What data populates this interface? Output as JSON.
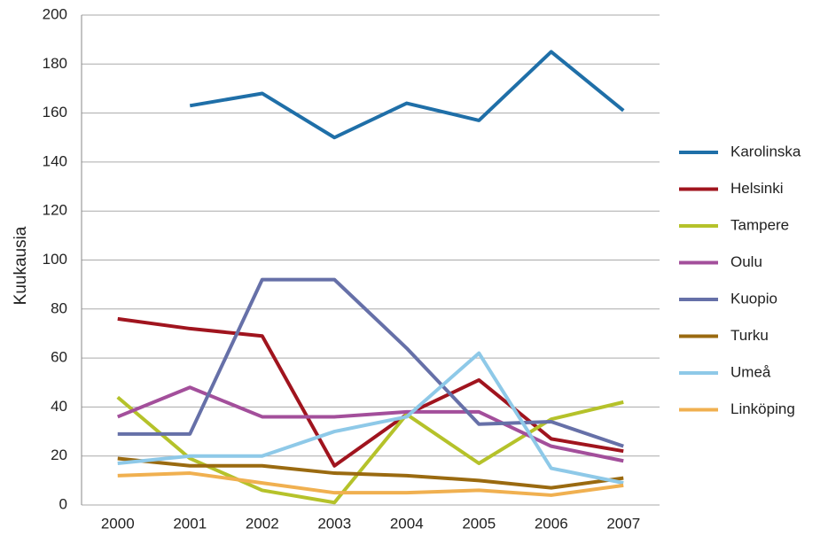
{
  "chart_data": {
    "type": "line",
    "y_label": "Kuukausia",
    "categories": [
      "2000",
      "2001",
      "2002",
      "2003",
      "2004",
      "2005",
      "2006",
      "2007"
    ],
    "series": [
      {
        "name": "Karolinska",
        "color": "#1f6fa8",
        "values": [
          null,
          163,
          168,
          150,
          164,
          157,
          185,
          161
        ]
      },
      {
        "name": "Helsinki",
        "color": "#a0141e",
        "values": [
          76,
          72,
          69,
          16,
          37,
          51,
          27,
          22
        ]
      },
      {
        "name": "Tampere",
        "color": "#b5c22a",
        "values": [
          44,
          19,
          6,
          1,
          37,
          17,
          35,
          42
        ]
      },
      {
        "name": "Oulu",
        "color": "#a34f9b",
        "values": [
          36,
          48,
          36,
          36,
          38,
          38,
          24,
          18
        ]
      },
      {
        "name": "Kuopio",
        "color": "#6670a8",
        "values": [
          29,
          29,
          92,
          92,
          64,
          33,
          34,
          24
        ]
      },
      {
        "name": "Turku",
        "color": "#9a6a10",
        "values": [
          19,
          16,
          16,
          13,
          12,
          10,
          7,
          11
        ]
      },
      {
        "name": "Umeå",
        "color": "#8ec9e8",
        "values": [
          17,
          20,
          20,
          30,
          36,
          62,
          15,
          9
        ]
      },
      {
        "name": "Linköping",
        "color": "#f0b050",
        "values": [
          12,
          13,
          9,
          5,
          5,
          6,
          4,
          8
        ]
      }
    ],
    "ylim": [
      0,
      200
    ],
    "yticks": [
      0,
      20,
      40,
      60,
      80,
      100,
      120,
      140,
      160,
      180,
      200
    ],
    "grid": true,
    "legend": "right"
  }
}
